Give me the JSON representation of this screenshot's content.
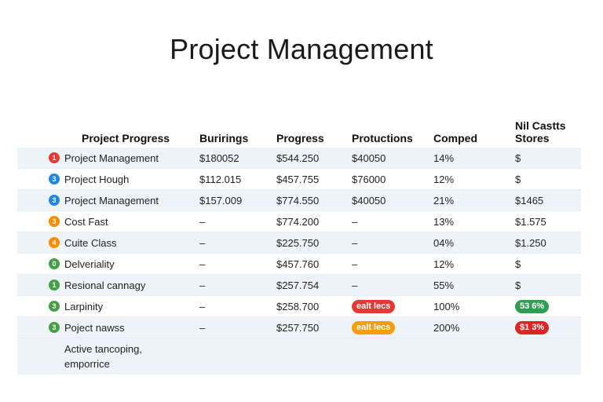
{
  "page": {
    "title": "Project Management"
  },
  "table": {
    "headers": {
      "name": "Project Progress",
      "budget": "Burirings",
      "progress": "Progress",
      "productions": "Protuctions",
      "completed": "Comped",
      "costs_line1": "Nil Castts",
      "costs_line2": "Stores"
    },
    "rows": [
      {
        "badge": "1",
        "badge_color": "#e53935",
        "name": "Project Management",
        "budget": "$180052",
        "progress": "$544.250",
        "productions": "$40050",
        "completed": "14%",
        "costs": "$"
      },
      {
        "badge": "3",
        "badge_color": "#1e88e5",
        "name": "Project Hough",
        "budget": "$112.015",
        "progress": "$457.755",
        "productions": "$76000",
        "completed": "12%",
        "costs": "$"
      },
      {
        "badge": "3",
        "badge_color": "#1e88e5",
        "name": "Project Management",
        "budget": "$157.009",
        "progress": "$774.550",
        "productions": "$40050",
        "completed": "21%",
        "costs": "$1465"
      },
      {
        "badge": "3",
        "badge_color": "#fb8c00",
        "name": "Cost Fast",
        "budget": "–",
        "progress": "$774.200",
        "productions": "–",
        "completed": "13%",
        "costs": "$1.575"
      },
      {
        "badge": "4",
        "badge_color": "#fb8c00",
        "name": "Cuite Class",
        "budget": "–",
        "progress": "$225.750",
        "productions": "–",
        "completed": "04%",
        "costs": "$1.250"
      },
      {
        "badge": "0",
        "badge_color": "#43a047",
        "name": "Delveriality",
        "budget": "–",
        "progress": "$457.760",
        "productions": "–",
        "completed": "12%",
        "costs": "$"
      },
      {
        "badge": "1",
        "badge_color": "#43a047",
        "name": "Resional cannagy",
        "budget": "–",
        "progress": "$257.754",
        "productions": "–",
        "completed": "55%",
        "costs": "$"
      },
      {
        "badge": "3",
        "badge_color": "#43a047",
        "name": "Larpinity",
        "budget": "–",
        "progress": "$258.700",
        "productions_pill": "ealt lecs",
        "productions_pill_color": "#e53935",
        "completed": "100%",
        "costs_pill": "53 6%",
        "costs_pill_color": "#2e9e4f"
      },
      {
        "badge": "3",
        "badge_color": "#43a047",
        "name": "Poject nawss",
        "budget": "–",
        "progress": "$257.750",
        "productions_pill": "ealt lecs",
        "productions_pill_color": "#f59e0b",
        "completed": "200%",
        "costs_pill": "$1 3%",
        "costs_pill_color": "#dc2626"
      }
    ],
    "footer_line1": "Active tancoping,",
    "footer_line2": "emporrice"
  }
}
